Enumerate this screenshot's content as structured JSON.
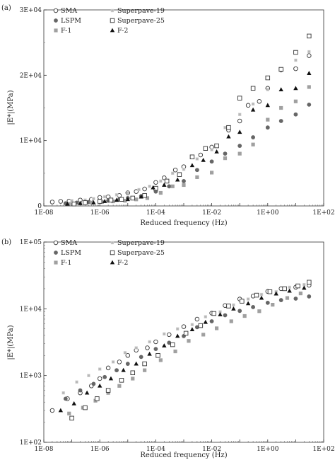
{
  "chart_data": [
    {
      "panel_label": "(a)",
      "type": "scatter",
      "xlabel": "Reduced frequency (Hz)",
      "ylabel": "|E*|(MPa)",
      "x_scale": "log",
      "y_scale": "linear",
      "xlim": [
        1e-08,
        100
      ],
      "ylim": [
        0,
        30000
      ],
      "x_ticks": [
        "1E-08",
        "1E-06",
        "1E-04",
        "1E-02",
        "1E+00",
        "1E+02"
      ],
      "y_ticks": [
        "0",
        "1E+04",
        "2E+04",
        "3E+04"
      ],
      "grid": false,
      "legend_position": "top-left",
      "series": [
        {
          "name": "SMA",
          "marker": "circle-open",
          "color": "#333333",
          "x": [
            2e-08,
            4e-08,
            8e-08,
            2e-07,
            5e-07,
            1e-06,
            2e-06,
            5e-06,
            1e-05,
            2e-05,
            4e-05,
            0.0001,
            0.0002,
            0.0005,
            0.001,
            0.004,
            0.01,
            0.04,
            0.1,
            0.2,
            0.5,
            1,
            3,
            10,
            30
          ],
          "y": [
            600,
            700,
            750,
            900,
            1000,
            1300,
            1400,
            1600,
            2000,
            2200,
            2600,
            3600,
            4300,
            5500,
            6000,
            7800,
            9000,
            11600,
            13000,
            15400,
            16000,
            18000,
            20800,
            21000,
            23000
          ]
        },
        {
          "name": "LSPM",
          "marker": "circle-filled",
          "color": "#666666",
          "x": [
            6e-08,
            1.5e-07,
            4e-07,
            1e-06,
            2e-06,
            5e-06,
            1e-05,
            3e-05,
            0.0001,
            0.0003,
            0.001,
            0.003,
            0.01,
            0.03,
            0.1,
            0.3,
            1,
            3,
            10,
            30
          ],
          "y": [
            400,
            500,
            600,
            700,
            800,
            1000,
            1200,
            1500,
            2200,
            3000,
            3800,
            5500,
            6800,
            8000,
            9200,
            10500,
            12000,
            13000,
            14000,
            15500
          ]
        },
        {
          "name": "F-1",
          "marker": "square-filled",
          "color": "#a0a0a0",
          "x": [
            8e-08,
            2e-07,
            5e-07,
            1.2e-06,
            3e-06,
            8e-06,
            2e-05,
            5e-05,
            0.00015,
            0.0004,
            0.001,
            0.003,
            0.01,
            0.03,
            0.1,
            0.3,
            1,
            3,
            10,
            30
          ],
          "y": [
            300,
            400,
            500,
            600,
            700,
            800,
            1000,
            1200,
            2000,
            3000,
            3200,
            4400,
            5100,
            7300,
            8000,
            9400,
            13200,
            15000,
            16000,
            18200
          ]
        },
        {
          "name": "Superpave-19",
          "marker": "square-small",
          "color": "#b8b8b8",
          "x": [
            1e-07,
            3e-07,
            6e-07,
            1.5e-06,
            4e-06,
            1e-05,
            2.5e-05,
            6e-05,
            0.00015,
            0.0004,
            0.001,
            0.003,
            0.01,
            0.03,
            0.1,
            0.3,
            1,
            3,
            10,
            30
          ],
          "y": [
            800,
            900,
            1100,
            1400,
            1700,
            2000,
            2500,
            3000,
            3800,
            5000,
            5600,
            7200,
            8600,
            12000,
            14000,
            15600,
            17800,
            20800,
            22300,
            23600
          ]
        },
        {
          "name": "Superpave-25",
          "marker": "square-open",
          "color": "#333333",
          "x": [
            1.2e-07,
            3e-07,
            1e-06,
            2.5e-06,
            6e-06,
            1.5e-05,
            4e-05,
            0.0001,
            0.00025,
            0.0007,
            0.002,
            0.006,
            0.015,
            0.04,
            0.1,
            0.3,
            1,
            3,
            10,
            30
          ],
          "y": [
            300,
            500,
            700,
            900,
            1000,
            1200,
            1600,
            2700,
            3800,
            4800,
            7500,
            8800,
            9200,
            12000,
            16500,
            18000,
            19600,
            20900,
            23500,
            26000
          ]
        },
        {
          "name": "F-2",
          "marker": "triangle-filled",
          "color": "#111111",
          "x": [
            7e-08,
            2e-07,
            6e-07,
            1.5e-06,
            4e-06,
            1e-05,
            3e-05,
            8e-05,
            0.0002,
            0.0006,
            0.002,
            0.005,
            0.015,
            0.04,
            0.1,
            0.3,
            1,
            3,
            10,
            30
          ],
          "y": [
            300,
            400,
            500,
            700,
            900,
            1000,
            1400,
            2800,
            3200,
            4000,
            6200,
            7000,
            8300,
            10600,
            11300,
            14700,
            15400,
            17800,
            18000,
            20300
          ]
        }
      ]
    },
    {
      "panel_label": "(b)",
      "type": "scatter",
      "xlabel": "Reduced frequency (Hz)",
      "ylabel": "|E*|(MPa)",
      "x_scale": "log",
      "y_scale": "log",
      "xlim": [
        1e-08,
        100
      ],
      "ylim": [
        100,
        100000
      ],
      "x_ticks": [
        "1E-08",
        "1E-06",
        "1E-04",
        "1E-02",
        "1E+00",
        "1E+02"
      ],
      "y_ticks": [
        "1E+02",
        "1E+03",
        "1E+04",
        "1E+05"
      ],
      "grid": false,
      "legend_position": "top-left",
      "series": [
        {
          "name": "SMA",
          "marker": "circle-open",
          "color": "#333333",
          "x": [
            2e-08,
            7e-08,
            2e-07,
            5e-07,
            1e-06,
            2e-06,
            5e-06,
            1e-05,
            2e-05,
            5e-05,
            0.0001,
            0.0003,
            0.001,
            0.003,
            0.01,
            0.03,
            0.1,
            0.3,
            1,
            3,
            10,
            30
          ],
          "y": [
            300,
            450,
            550,
            700,
            900,
            1300,
            1600,
            2000,
            2400,
            2600,
            3200,
            4100,
            5400,
            7000,
            8600,
            11200,
            14000,
            15500,
            18200,
            20000,
            21000,
            22500
          ]
        },
        {
          "name": "LSPM",
          "marker": "circle-filled",
          "color": "#666666",
          "x": [
            6e-08,
            2e-07,
            6e-07,
            1.5e-06,
            4e-06,
            1e-05,
            3e-05,
            0.0001,
            0.0003,
            0.001,
            0.003,
            0.01,
            0.03,
            0.1,
            0.3,
            1,
            3,
            10,
            30
          ],
          "y": [
            450,
            600,
            750,
            950,
            1200,
            1500,
            1900,
            2500,
            3100,
            3900,
            5300,
            6500,
            8000,
            9300,
            10600,
            12300,
            13500,
            14200,
            15300
          ]
        },
        {
          "name": "F-1",
          "marker": "square-filled",
          "color": "#a0a0a0",
          "x": [
            8e-08,
            2.5e-07,
            7e-07,
            2e-06,
            5e-06,
            1.5e-05,
            4e-05,
            0.00015,
            0.0005,
            0.0015,
            0.005,
            0.015,
            0.05,
            0.15,
            0.5,
            1.5,
            5,
            15
          ],
          "y": [
            270,
            330,
            420,
            550,
            700,
            900,
            1200,
            1700,
            2300,
            3300,
            4100,
            5100,
            6500,
            7800,
            9200,
            11500,
            14500,
            17000
          ]
        },
        {
          "name": "Superpave-19",
          "marker": "square-small",
          "color": "#b8b8b8",
          "x": [
            5e-08,
            1.5e-07,
            4e-07,
            1e-06,
            3e-06,
            8e-06,
            2e-05,
            6e-05,
            0.0002,
            0.0006,
            0.002,
            0.006,
            0.02,
            0.06,
            0.2,
            0.6,
            2,
            6,
            20
          ],
          "y": [
            550,
            800,
            1000,
            1250,
            1600,
            2200,
            2600,
            3200,
            4200,
            5000,
            5800,
            7600,
            9000,
            11400,
            14000,
            16400,
            18000,
            21000,
            23000
          ]
        },
        {
          "name": "Superpave-25",
          "marker": "square-open",
          "color": "#333333",
          "x": [
            1e-07,
            3e-07,
            8e-07,
            2e-06,
            6e-06,
            1.5e-05,
            4e-05,
            0.00012,
            0.0004,
            0.0012,
            0.004,
            0.012,
            0.04,
            0.12,
            0.4,
            1.2,
            4,
            12,
            30
          ],
          "y": [
            230,
            330,
            450,
            600,
            850,
            1100,
            1500,
            2000,
            2900,
            4300,
            5600,
            8500,
            11000,
            13000,
            16000,
            18000,
            20000,
            22000,
            25000
          ]
        },
        {
          "name": "F-2",
          "marker": "triangle-filled",
          "color": "#111111",
          "x": [
            4e-08,
            1.2e-07,
            3.5e-07,
            1e-06,
            2.5e-06,
            7e-06,
            2e-05,
            6e-05,
            0.0002,
            0.0006,
            0.002,
            0.006,
            0.02,
            0.06,
            0.2,
            0.6,
            2,
            6,
            20
          ],
          "y": [
            300,
            380,
            550,
            700,
            900,
            1200,
            1500,
            2100,
            2800,
            3900,
            4900,
            6300,
            8200,
            10000,
            12000,
            14500,
            16800,
            18500,
            20500
          ]
        }
      ]
    }
  ]
}
